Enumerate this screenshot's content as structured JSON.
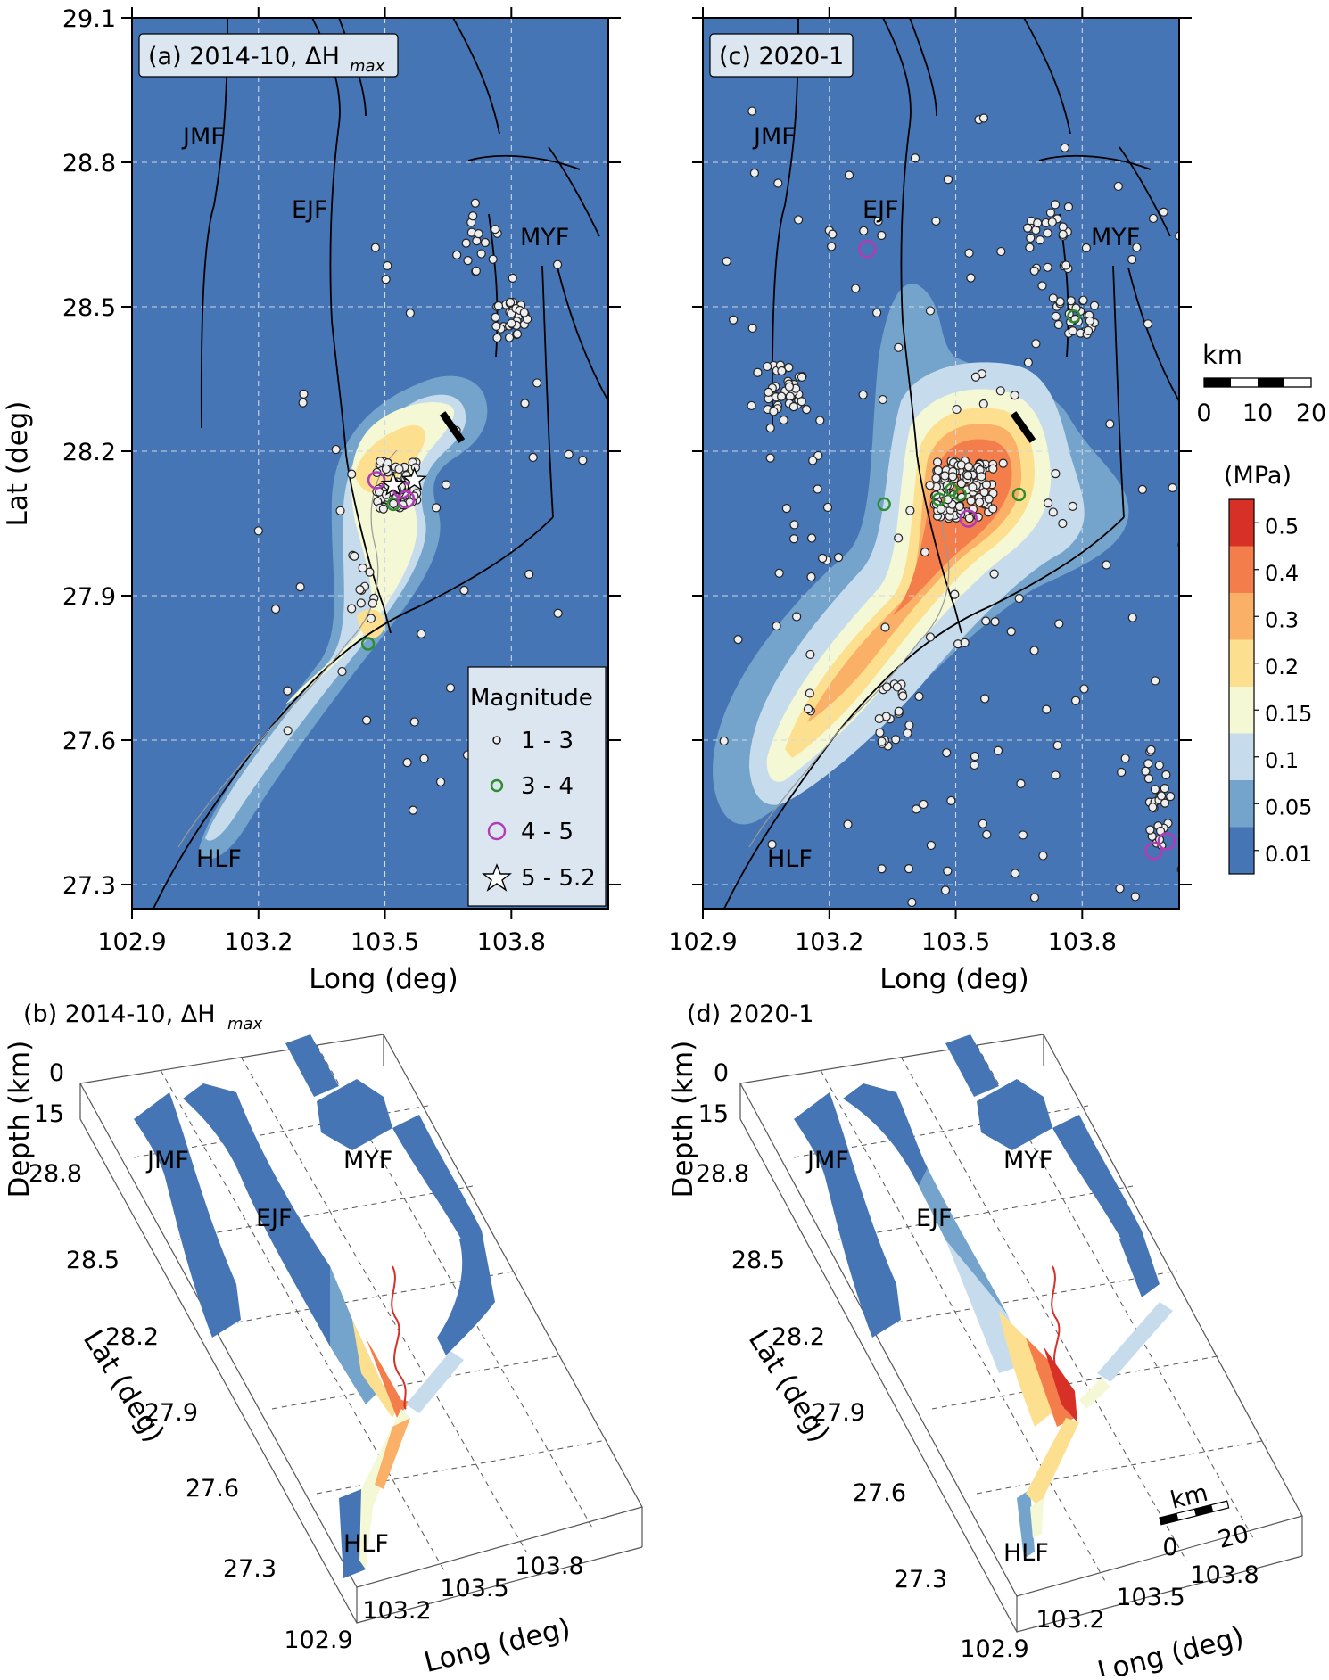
{
  "colors": {
    "c001": "#4575b4",
    "c005": "#74a3cb",
    "c01": "#c6dcec",
    "c015": "#f4f8d4",
    "c02": "#fde08f",
    "c03": "#fbb067",
    "c04": "#f47e4b",
    "c05": "#d73027"
  },
  "chart_data": [
    {
      "id": "a",
      "type": "contour-map",
      "title": "(a) 2014-10, ΔH",
      "title_sub": "max",
      "xlabel": "Long (deg)",
      "ylabel": "Lat (deg)",
      "xlim": [
        102.9,
        104.03
      ],
      "ylim": [
        27.25,
        29.1
      ],
      "xticks": [
        "102.9",
        "103.2",
        "103.5",
        "103.8"
      ],
      "yticks": [
        "29.1",
        "28.8",
        "28.5",
        "28.2",
        "27.9",
        "27.6",
        "27.3"
      ],
      "grid": true,
      "fault_labels": [
        "JMF",
        "EJF",
        "MYF",
        "HLF"
      ],
      "legend": {
        "title": "Magnitude",
        "entries": [
          "1 - 3",
          "3 - 4",
          "4 - 5",
          "5 - 5.2"
        ],
        "placement": "bottom-right"
      },
      "events_m3_4": [
        [
          103.46,
          27.8
        ],
        [
          103.52,
          28.09
        ]
      ],
      "events_m4_5": [
        [
          103.48,
          28.14
        ],
        [
          103.54,
          28.12
        ],
        [
          103.55,
          28.1
        ]
      ],
      "events_m5": [
        [
          103.52,
          28.13
        ],
        [
          103.57,
          28.14
        ]
      ]
    },
    {
      "id": "c",
      "type": "contour-map",
      "title": "(c) 2020-1",
      "xlabel": "Long (deg)",
      "xlim": [
        102.9,
        104.03
      ],
      "ylim": [
        27.25,
        29.1
      ],
      "xticks": [
        "102.9",
        "103.2",
        "103.5",
        "103.8"
      ],
      "grid": true,
      "fault_labels": [
        "JMF",
        "EJF",
        "MYF",
        "HLF"
      ],
      "colorbar": {
        "unit": "(MPa)",
        "levels": [
          "0.5",
          "0.4",
          "0.3",
          "0.2",
          "0.15",
          "0.1",
          "0.05",
          "0.01"
        ]
      },
      "scalebar": {
        "unit": "km",
        "ticks": [
          "0",
          "10",
          "20"
        ]
      },
      "events_m3_4": [
        [
          103.33,
          28.09
        ],
        [
          103.46,
          28.1
        ],
        [
          103.49,
          28.12
        ],
        [
          103.51,
          28.11
        ],
        [
          103.65,
          28.11
        ],
        [
          103.78,
          28.48
        ]
      ],
      "events_m4_5": [
        [
          103.29,
          28.62
        ],
        [
          103.53,
          28.06
        ],
        [
          103.97,
          27.37
        ],
        [
          104.0,
          27.39
        ]
      ]
    },
    {
      "id": "b",
      "type": "3d-fault-surface",
      "title": "(b) 2014-10, ΔH",
      "title_sub": "max",
      "xlabel": "Long (deg)",
      "ylabel": "Lat (deg)",
      "zlabel": "Depth (km)",
      "xticks": [
        "102.9",
        "103.2",
        "103.5",
        "103.8"
      ],
      "yticks": [
        "28.8",
        "28.5",
        "28.2",
        "27.9",
        "27.6",
        "27.3"
      ],
      "zticks": [
        "0",
        "15"
      ],
      "fault_labels": [
        "JMF",
        "EJF",
        "MYF",
        "HLF"
      ]
    },
    {
      "id": "d",
      "type": "3d-fault-surface",
      "title": "(d) 2020-1",
      "xlabel": "Long (deg)",
      "ylabel": "Lat (deg)",
      "zlabel": "Depth (km)",
      "xticks": [
        "102.9",
        "103.2",
        "103.5",
        "103.8"
      ],
      "yticks": [
        "28.8",
        "28.5",
        "28.2",
        "27.9",
        "27.6",
        "27.3"
      ],
      "zticks": [
        "0",
        "15"
      ],
      "fault_labels": [
        "JMF",
        "EJF",
        "MYF",
        "HLF"
      ],
      "scalebar": {
        "unit": "km",
        "ticks": [
          "0",
          "20"
        ]
      }
    }
  ]
}
